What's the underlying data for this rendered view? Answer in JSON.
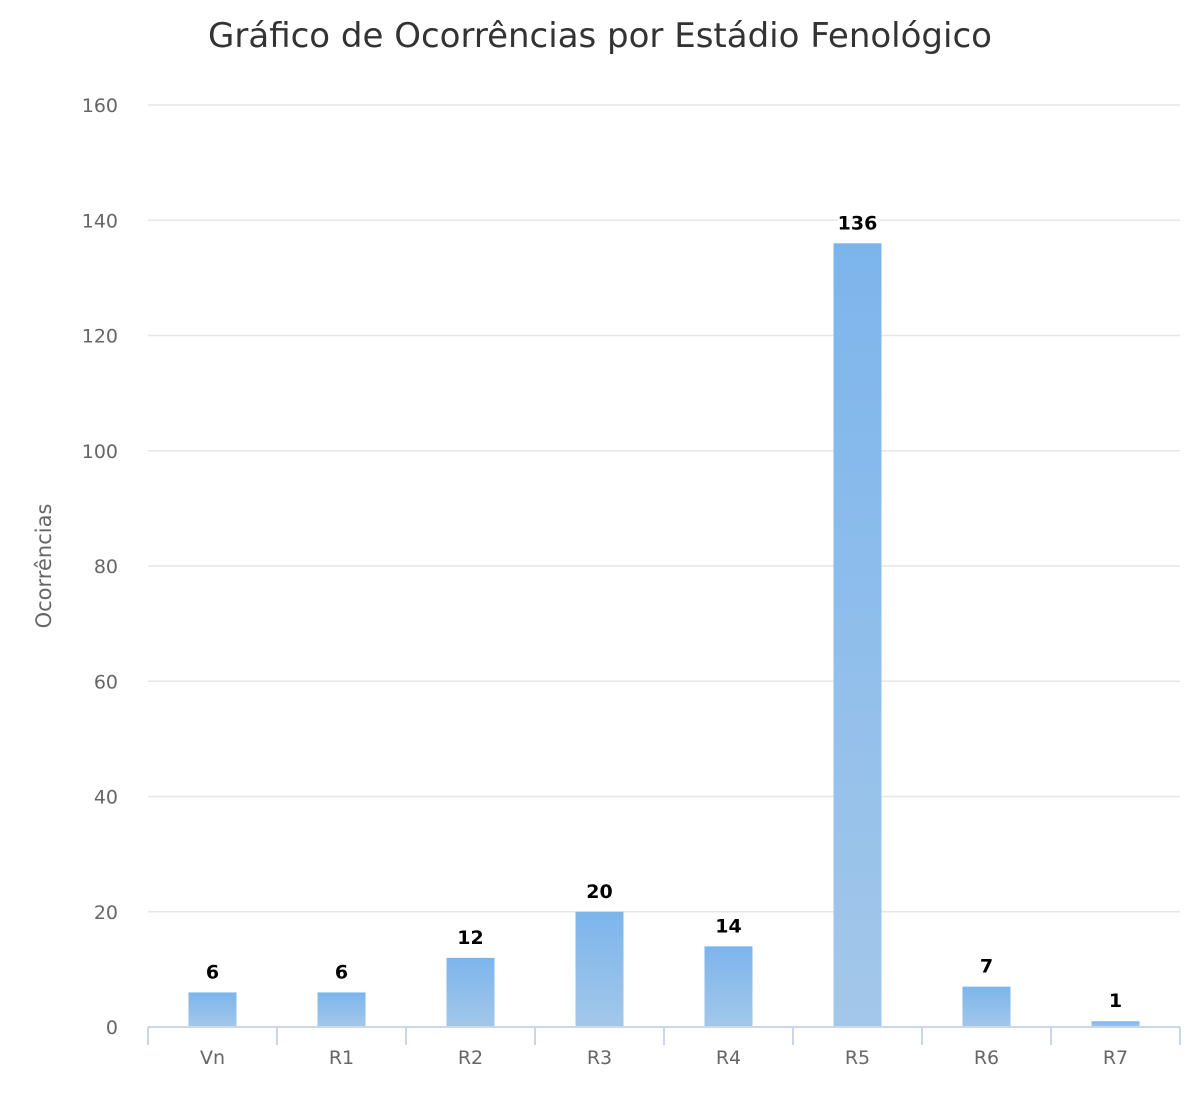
{
  "chart_data": {
    "type": "bar",
    "title": "Gráfico de Ocorrências por Estádio Fenológico",
    "xlabel": "",
    "ylabel": "Ocorrências",
    "categories": [
      "Vn",
      "R1",
      "R2",
      "R3",
      "R4",
      "R5",
      "R6",
      "R7"
    ],
    "values": [
      6,
      6,
      12,
      20,
      14,
      136,
      7,
      1
    ],
    "ylim": [
      0,
      160
    ],
    "yticks": [
      0,
      20,
      40,
      60,
      80,
      100,
      120,
      140,
      160
    ],
    "grid": true,
    "legend": "none",
    "data_labels": true,
    "colors": {
      "bar_top": "#7cb5ec",
      "bar_bottom": "#a3c7ea",
      "grid": "#e6e6e6",
      "axis": "#ccd6eb"
    }
  }
}
